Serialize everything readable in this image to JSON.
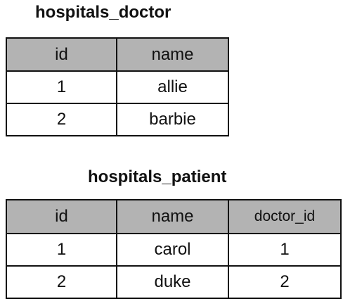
{
  "tables": [
    {
      "title": "hospitals_doctor",
      "headers": [
        "id",
        "name"
      ],
      "rows": [
        [
          "1",
          "allie"
        ],
        [
          "2",
          "barbie"
        ]
      ]
    },
    {
      "title": "hospitals_patient",
      "headers": [
        "id",
        "name",
        "doctor_id"
      ],
      "rows": [
        [
          "1",
          "carol",
          "1"
        ],
        [
          "2",
          "duke",
          "2"
        ]
      ]
    }
  ],
  "colors": {
    "header_background": "#b3b3b3",
    "border": "#111111",
    "cell_background": "#ffffff"
  }
}
